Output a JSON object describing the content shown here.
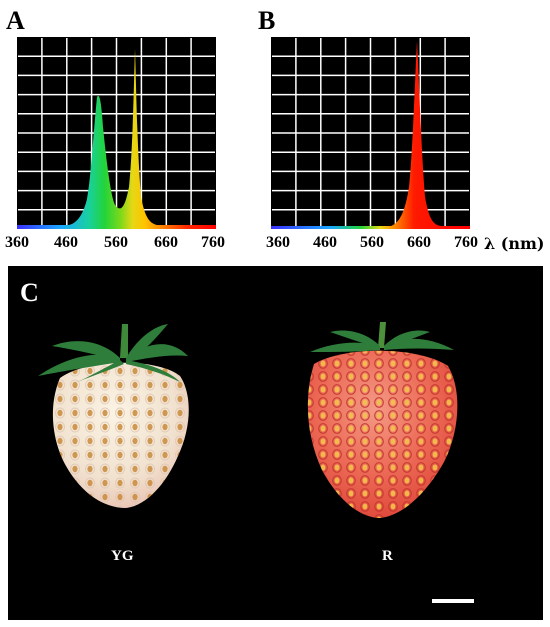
{
  "panels": {
    "a": {
      "label": "A"
    },
    "b": {
      "label": "B"
    },
    "c": {
      "label": "C"
    }
  },
  "axis": {
    "ticks": [
      "360",
      "460",
      "560",
      "660",
      "760"
    ],
    "unit": "λ (nm)"
  },
  "photo": {
    "left_label": "YG",
    "right_label": "R"
  },
  "colors": {
    "grid": "#ffffff",
    "plot_background": "#000000",
    "yg_green_peak": "#22c24a",
    "yg_yellow_peak": "#ffd400",
    "r_red_peak": "#ff1a00"
  }
}
